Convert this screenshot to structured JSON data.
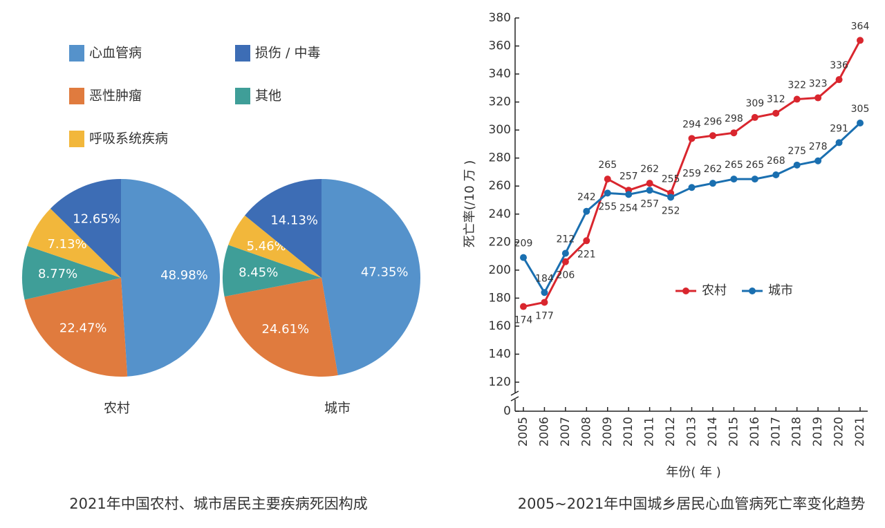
{
  "chart_data": [
    {
      "type": "pie",
      "title": "2021年中国农村、城市居民主要疾病死因构成",
      "categories": [
        "心血管病",
        "恶性肿瘤",
        "其他",
        "呼吸系统疾病",
        "损伤 / 中毒"
      ],
      "colors": [
        "#5592cb",
        "#e07b3e",
        "#3f9e98",
        "#f2b73b",
        "#3d6db5"
      ],
      "pies": [
        {
          "name": "农村",
          "values": [
            48.98,
            22.47,
            8.77,
            7.13,
            12.65
          ],
          "value_labels": [
            "48.98%",
            "22.47%",
            "8.77%",
            "7.13%",
            "12.65%"
          ]
        },
        {
          "name": "城市",
          "values": [
            47.35,
            24.61,
            8.45,
            5.46,
            14.13
          ],
          "value_labels": [
            "47.35%",
            "24.61%",
            "8.45%",
            "5.46%",
            "14.13%"
          ]
        }
      ]
    },
    {
      "type": "line",
      "title": "2005~2021年中国城乡居民心血管病死亡率变化趋势",
      "x_label": "年份( 年 )",
      "y_label": "死亡率(/10 万 )",
      "categories": [
        "2005",
        "2006",
        "2007",
        "2008",
        "2009",
        "2010",
        "2011",
        "2012",
        "2013",
        "2014",
        "2015",
        "2016",
        "2017",
        "2018",
        "2019",
        "2020",
        "2021"
      ],
      "series": [
        {
          "name": "农村",
          "color": "#d9262e",
          "values": [
            174,
            177,
            206,
            221,
            265,
            257,
            262,
            255,
            294,
            296,
            298,
            309,
            312,
            322,
            323,
            336,
            364
          ]
        },
        {
          "name": "城市",
          "color": "#1a6fb0",
          "values": [
            209,
            184,
            212,
            242,
            255,
            254,
            257,
            252,
            259,
            262,
            265,
            265,
            268,
            275,
            278,
            291,
            305
          ]
        }
      ],
      "ylim": [
        0,
        380
      ],
      "yticks": [
        0,
        120,
        140,
        160,
        180,
        200,
        220,
        240,
        260,
        280,
        300,
        320,
        340,
        360,
        380
      ],
      "axis_break": true,
      "grid": false,
      "legend": "center"
    }
  ]
}
